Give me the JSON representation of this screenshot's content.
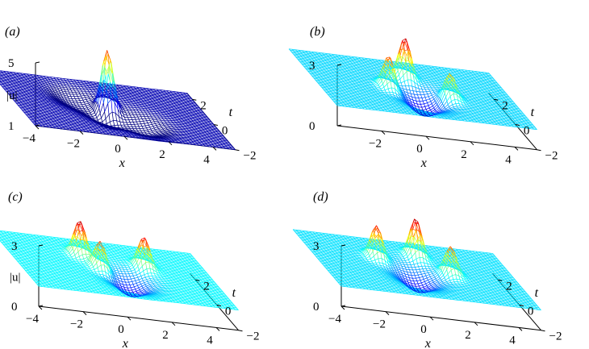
{
  "chart_data": [
    {
      "type": "surface",
      "panel_label": "(a)",
      "zlabel": "|u|",
      "xlabel": "x",
      "ylabel": "t",
      "zticks": [
        "1",
        "5"
      ],
      "xticks": [
        "−4",
        "−2",
        "0",
        "2",
        "4"
      ],
      "yticks": [
        "−2",
        "0",
        "2"
      ],
      "zlim": [
        1,
        5
      ],
      "xlim": [
        -4,
        5
      ],
      "ylim": [
        -2,
        2.5
      ],
      "colormap": "jet",
      "base_level": 1,
      "peaks": [
        {
          "x": 0.5,
          "t": 0.6,
          "height": 5.0,
          "sign": 1
        },
        {
          "x": 0.2,
          "t": 0.0,
          "height": 0.9,
          "sign": -1
        },
        {
          "x": 1.6,
          "t": -0.6,
          "height": 0.7,
          "sign": -1
        },
        {
          "x": -0.8,
          "t": 1.0,
          "height": 0.6,
          "sign": -1
        }
      ]
    },
    {
      "type": "surface",
      "panel_label": "(b)",
      "zlabel": "",
      "xlabel": "x",
      "ylabel": "t",
      "zticks": [
        "0",
        "3"
      ],
      "xticks": [
        "−2",
        "0",
        "2",
        "4"
      ],
      "yticks": [
        "−2",
        "0",
        "2"
      ],
      "zlim": [
        0,
        3
      ],
      "xlim": [
        -4,
        5
      ],
      "ylim": [
        -2,
        2.5
      ],
      "colormap": "jet",
      "base_level": 1,
      "peaks": [
        {
          "x": 0.6,
          "t": 1.2,
          "height": 3.0,
          "sign": 1
        },
        {
          "x": -0.6,
          "t": 0.2,
          "height": 2.6,
          "sign": 1
        },
        {
          "x": 2.0,
          "t": -0.1,
          "height": 2.3,
          "sign": 1
        },
        {
          "x": 0.7,
          "t": -0.3,
          "height": 0.9,
          "sign": -1
        }
      ]
    },
    {
      "type": "surface",
      "panel_label": "(c)",
      "zlabel": "|u|",
      "xlabel": "x",
      "ylabel": "t",
      "zticks": [
        "0",
        "3"
      ],
      "xticks": [
        "−4",
        "−2",
        "0",
        "2",
        "4"
      ],
      "yticks": [
        "−2",
        "0",
        "2"
      ],
      "zlim": [
        0,
        3
      ],
      "xlim": [
        -4,
        5
      ],
      "ylim": [
        -2,
        2.5
      ],
      "colormap": "jet",
      "base_level": 1,
      "peaks": [
        {
          "x": -0.6,
          "t": 1.2,
          "height": 2.7,
          "sign": 1
        },
        {
          "x": -0.1,
          "t": 0.3,
          "height": 2.4,
          "sign": 1
        },
        {
          "x": 2.1,
          "t": 0.8,
          "height": 2.5,
          "sign": 1
        },
        {
          "x": 0.9,
          "t": -0.4,
          "height": 0.8,
          "sign": -1
        }
      ]
    },
    {
      "type": "surface",
      "panel_label": "(d)",
      "zlabel": "",
      "xlabel": "x",
      "ylabel": "t",
      "zticks": [
        "0",
        "3"
      ],
      "xticks": [
        "−4",
        "−2",
        "0",
        "2",
        "4"
      ],
      "yticks": [
        "−2",
        "0",
        "2"
      ],
      "zlim": [
        0,
        3
      ],
      "xlim": [
        -4,
        5
      ],
      "ylim": [
        -2,
        2.5
      ],
      "colormap": "jet",
      "base_level": 1,
      "peaks": [
        {
          "x": -1.0,
          "t": 0.9,
          "height": 2.6,
          "sign": 1
        },
        {
          "x": 1.0,
          "t": 1.4,
          "height": 2.9,
          "sign": 1
        },
        {
          "x": 2.0,
          "t": 0.2,
          "height": 2.4,
          "sign": 1
        },
        {
          "x": 0.3,
          "t": -0.2,
          "height": 0.8,
          "sign": -1
        }
      ]
    }
  ]
}
